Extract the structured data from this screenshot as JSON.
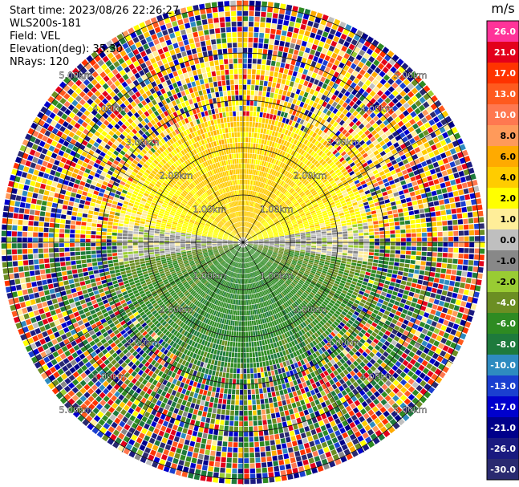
{
  "header": {
    "start_time": "Start time: 2023/08/26 22:26:27",
    "site": "WLS200s-181",
    "field": "Field: VEL",
    "elevation": "Elevation(deg): 35.30",
    "nrays": "NRays: 120"
  },
  "colorbar": {
    "unit": "m/s",
    "ticks": [
      "26.0",
      "21.0",
      "17.0",
      "13.0",
      "10.0",
      "8.0",
      "6.0",
      "4.0",
      "2.0",
      "1.0",
      "0.0",
      "-1.0",
      "-2.0",
      "-4.0",
      "-6.0",
      "-8.0",
      "-10.0",
      "-13.0",
      "-17.0",
      "-21.0",
      "-26.0",
      "-30.0"
    ],
    "colors": [
      "#ff3399",
      "#e3001b",
      "#ff3300",
      "#ff5a1e",
      "#ff7850",
      "#ff9a5a",
      "#ffaa00",
      "#ffcc00",
      "#ffff00",
      "#ffee99",
      "#bfbfbf",
      "#888888",
      "#99cc33",
      "#6b8e23",
      "#2e8b22",
      "#1e7a3c",
      "#2e8bc0",
      "#1a3fd0",
      "#0000cd",
      "#00008b",
      "#1a1a80",
      "#2a2a70"
    ]
  },
  "chart_data": {
    "type": "polar-ppi",
    "field": "VEL",
    "units": "m/s",
    "elevation_deg": 35.3,
    "n_rays": 120,
    "range_rings_km": [
      1,
      2,
      3,
      4,
      5
    ],
    "range_labels": [
      "1.00km",
      "2.00km",
      "3.00km",
      "4.00km",
      "5.00km"
    ],
    "spokes_deg": [
      0,
      30,
      60,
      90,
      120,
      150,
      180,
      210,
      240,
      270,
      300,
      330
    ],
    "value_range": [
      -30.0,
      26.0
    ],
    "pattern": {
      "north_sector_mean_ms": 4.0,
      "south_sector_mean_ms": -5.0,
      "noise_beyond_km": 2.6
    }
  }
}
